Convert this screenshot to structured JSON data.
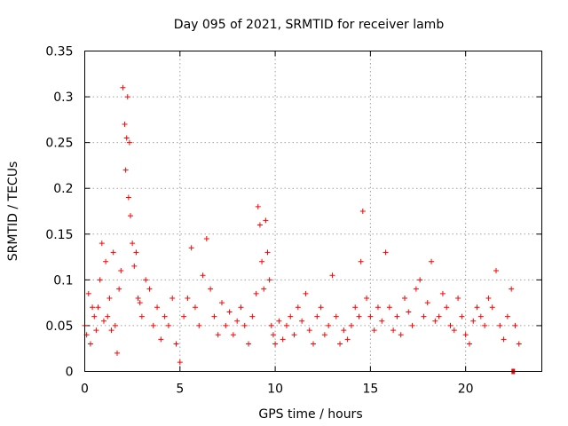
{
  "chart_data": {
    "type": "scatter",
    "title": "Day 095 of 2021, SRMTID for receiver lamb",
    "xlabel": "GPS time / hours",
    "ylabel": "SRMTID / TECUs",
    "xlim": [
      0,
      24
    ],
    "ylim": [
      0,
      0.35
    ],
    "xticks": [
      0,
      5,
      10,
      15,
      20
    ],
    "xtick_labels": [
      "0",
      "5",
      "10",
      "15",
      "20"
    ],
    "yticks": [
      0,
      0.05,
      0.1,
      0.15,
      0.2,
      0.25,
      0.3,
      0.35
    ],
    "ytick_labels": [
      "0",
      "0.05",
      "0.1",
      "0.15",
      "0.2",
      "0.25",
      "0.3",
      "0.35"
    ],
    "grid": true,
    "marker": "plus",
    "color": "#ff0000",
    "series": [
      {
        "name": "SRMTID",
        "x": [
          0.0,
          0.1,
          0.2,
          0.3,
          0.4,
          0.5,
          0.6,
          0.7,
          0.8,
          0.9,
          1.0,
          1.1,
          1.2,
          1.3,
          1.4,
          1.5,
          1.6,
          1.7,
          1.8,
          1.9,
          2.0,
          2.1,
          2.15,
          2.2,
          2.25,
          2.3,
          2.35,
          2.4,
          2.5,
          2.6,
          2.7,
          2.8,
          2.9,
          3.0,
          3.2,
          3.4,
          3.6,
          3.8,
          4.0,
          4.2,
          4.4,
          4.6,
          4.8,
          5.0,
          5.2,
          5.4,
          5.6,
          5.8,
          6.0,
          6.2,
          6.4,
          6.6,
          6.8,
          7.0,
          7.2,
          7.4,
          7.6,
          7.8,
          8.0,
          8.2,
          8.4,
          8.6,
          8.8,
          9.0,
          9.1,
          9.2,
          9.3,
          9.4,
          9.5,
          9.6,
          9.7,
          9.8,
          9.9,
          10.0,
          10.2,
          10.4,
          10.6,
          10.8,
          11.0,
          11.2,
          11.4,
          11.6,
          11.8,
          12.0,
          12.2,
          12.4,
          12.6,
          12.8,
          13.0,
          13.2,
          13.4,
          13.6,
          13.8,
          14.0,
          14.2,
          14.4,
          14.5,
          14.6,
          14.8,
          15.0,
          15.2,
          15.4,
          15.6,
          15.8,
          16.0,
          16.2,
          16.4,
          16.6,
          16.8,
          17.0,
          17.2,
          17.4,
          17.6,
          17.8,
          18.0,
          18.2,
          18.4,
          18.6,
          18.8,
          19.0,
          19.2,
          19.4,
          19.6,
          19.8,
          20.0,
          20.2,
          20.4,
          20.6,
          20.8,
          21.0,
          21.2,
          21.4,
          21.6,
          21.8,
          22.0,
          22.2,
          22.4,
          22.6,
          22.8
        ],
        "y": [
          0.05,
          0.04,
          0.085,
          0.03,
          0.07,
          0.06,
          0.045,
          0.07,
          0.1,
          0.14,
          0.055,
          0.12,
          0.06,
          0.08,
          0.045,
          0.13,
          0.05,
          0.02,
          0.09,
          0.11,
          0.31,
          0.27,
          0.22,
          0.255,
          0.3,
          0.19,
          0.25,
          0.17,
          0.14,
          0.115,
          0.13,
          0.08,
          0.075,
          0.06,
          0.1,
          0.09,
          0.05,
          0.07,
          0.035,
          0.06,
          0.05,
          0.08,
          0.03,
          0.01,
          0.06,
          0.08,
          0.135,
          0.07,
          0.05,
          0.105,
          0.145,
          0.09,
          0.06,
          0.04,
          0.075,
          0.05,
          0.065,
          0.04,
          0.055,
          0.07,
          0.05,
          0.03,
          0.06,
          0.085,
          0.18,
          0.16,
          0.12,
          0.09,
          0.165,
          0.13,
          0.1,
          0.05,
          0.04,
          0.03,
          0.055,
          0.035,
          0.05,
          0.06,
          0.04,
          0.07,
          0.055,
          0.085,
          0.045,
          0.03,
          0.06,
          0.07,
          0.04,
          0.05,
          0.105,
          0.06,
          0.03,
          0.045,
          0.035,
          0.05,
          0.07,
          0.06,
          0.12,
          0.175,
          0.08,
          0.06,
          0.045,
          0.07,
          0.055,
          0.13,
          0.07,
          0.045,
          0.06,
          0.04,
          0.08,
          0.065,
          0.05,
          0.09,
          0.1,
          0.06,
          0.075,
          0.12,
          0.055,
          0.06,
          0.085,
          0.07,
          0.05,
          0.045,
          0.08,
          0.06,
          0.04,
          0.03,
          0.055,
          0.07,
          0.06,
          0.05,
          0.08,
          0.07,
          0.11,
          0.05,
          0.035,
          0.06,
          0.09,
          0.05,
          0.03
        ],
        "outlier": {
          "x": 22.5,
          "y": 0.0
        }
      }
    ]
  }
}
